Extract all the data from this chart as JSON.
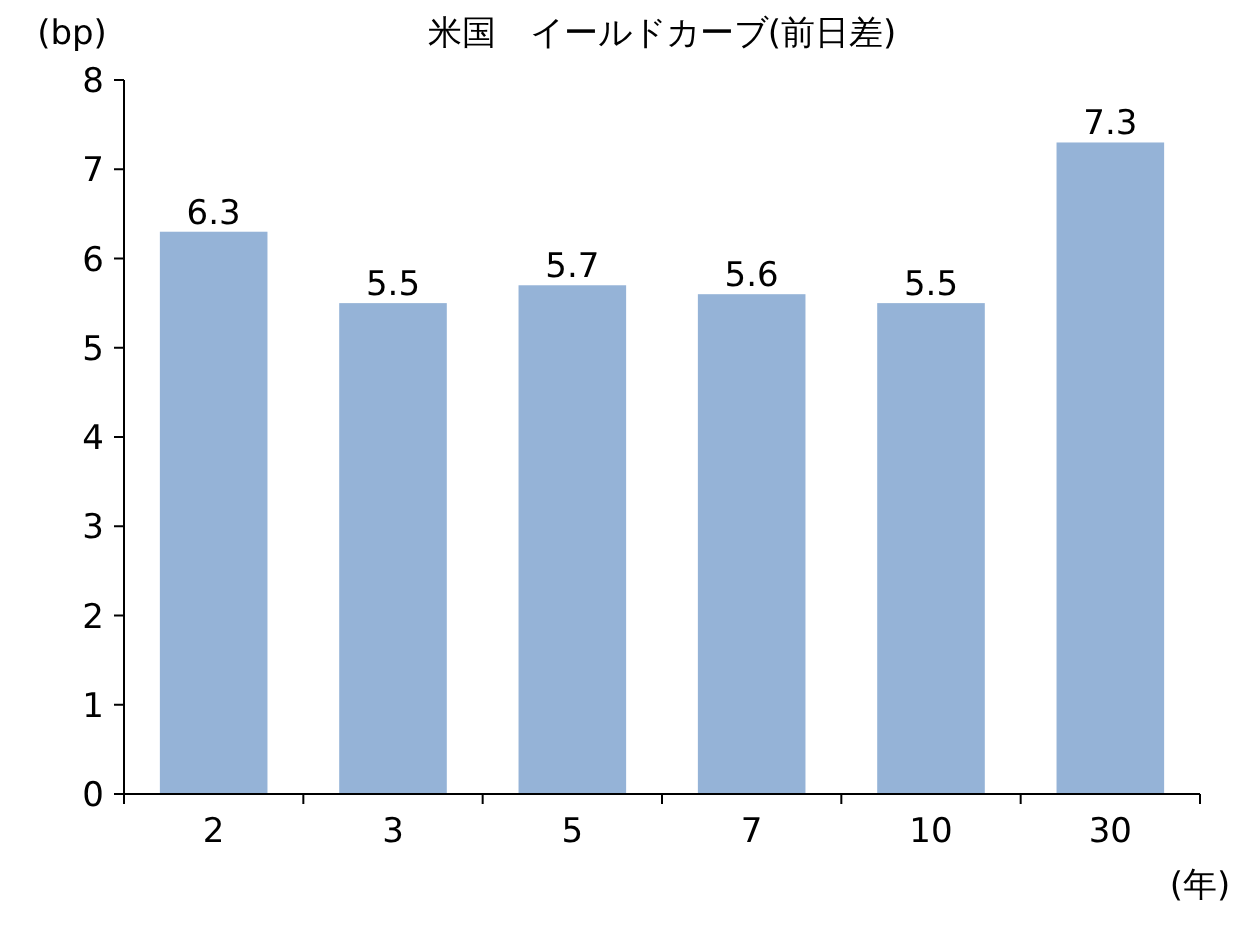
{
  "chart_data": {
    "type": "bar",
    "title": "米国　イールドカーブ(前日差)",
    "ylabel": "(bp)",
    "xlabel": "(年)",
    "categories": [
      "2",
      "3",
      "5",
      "7",
      "10",
      "30"
    ],
    "values": [
      6.3,
      5.5,
      5.7,
      5.6,
      5.5,
      7.3
    ],
    "color": "#95b3d7",
    "ylim": [
      0,
      8
    ],
    "yticks": [
      0,
      1,
      2,
      3,
      4,
      5,
      6,
      7,
      8
    ],
    "data_labels": true,
    "grid": false
  }
}
